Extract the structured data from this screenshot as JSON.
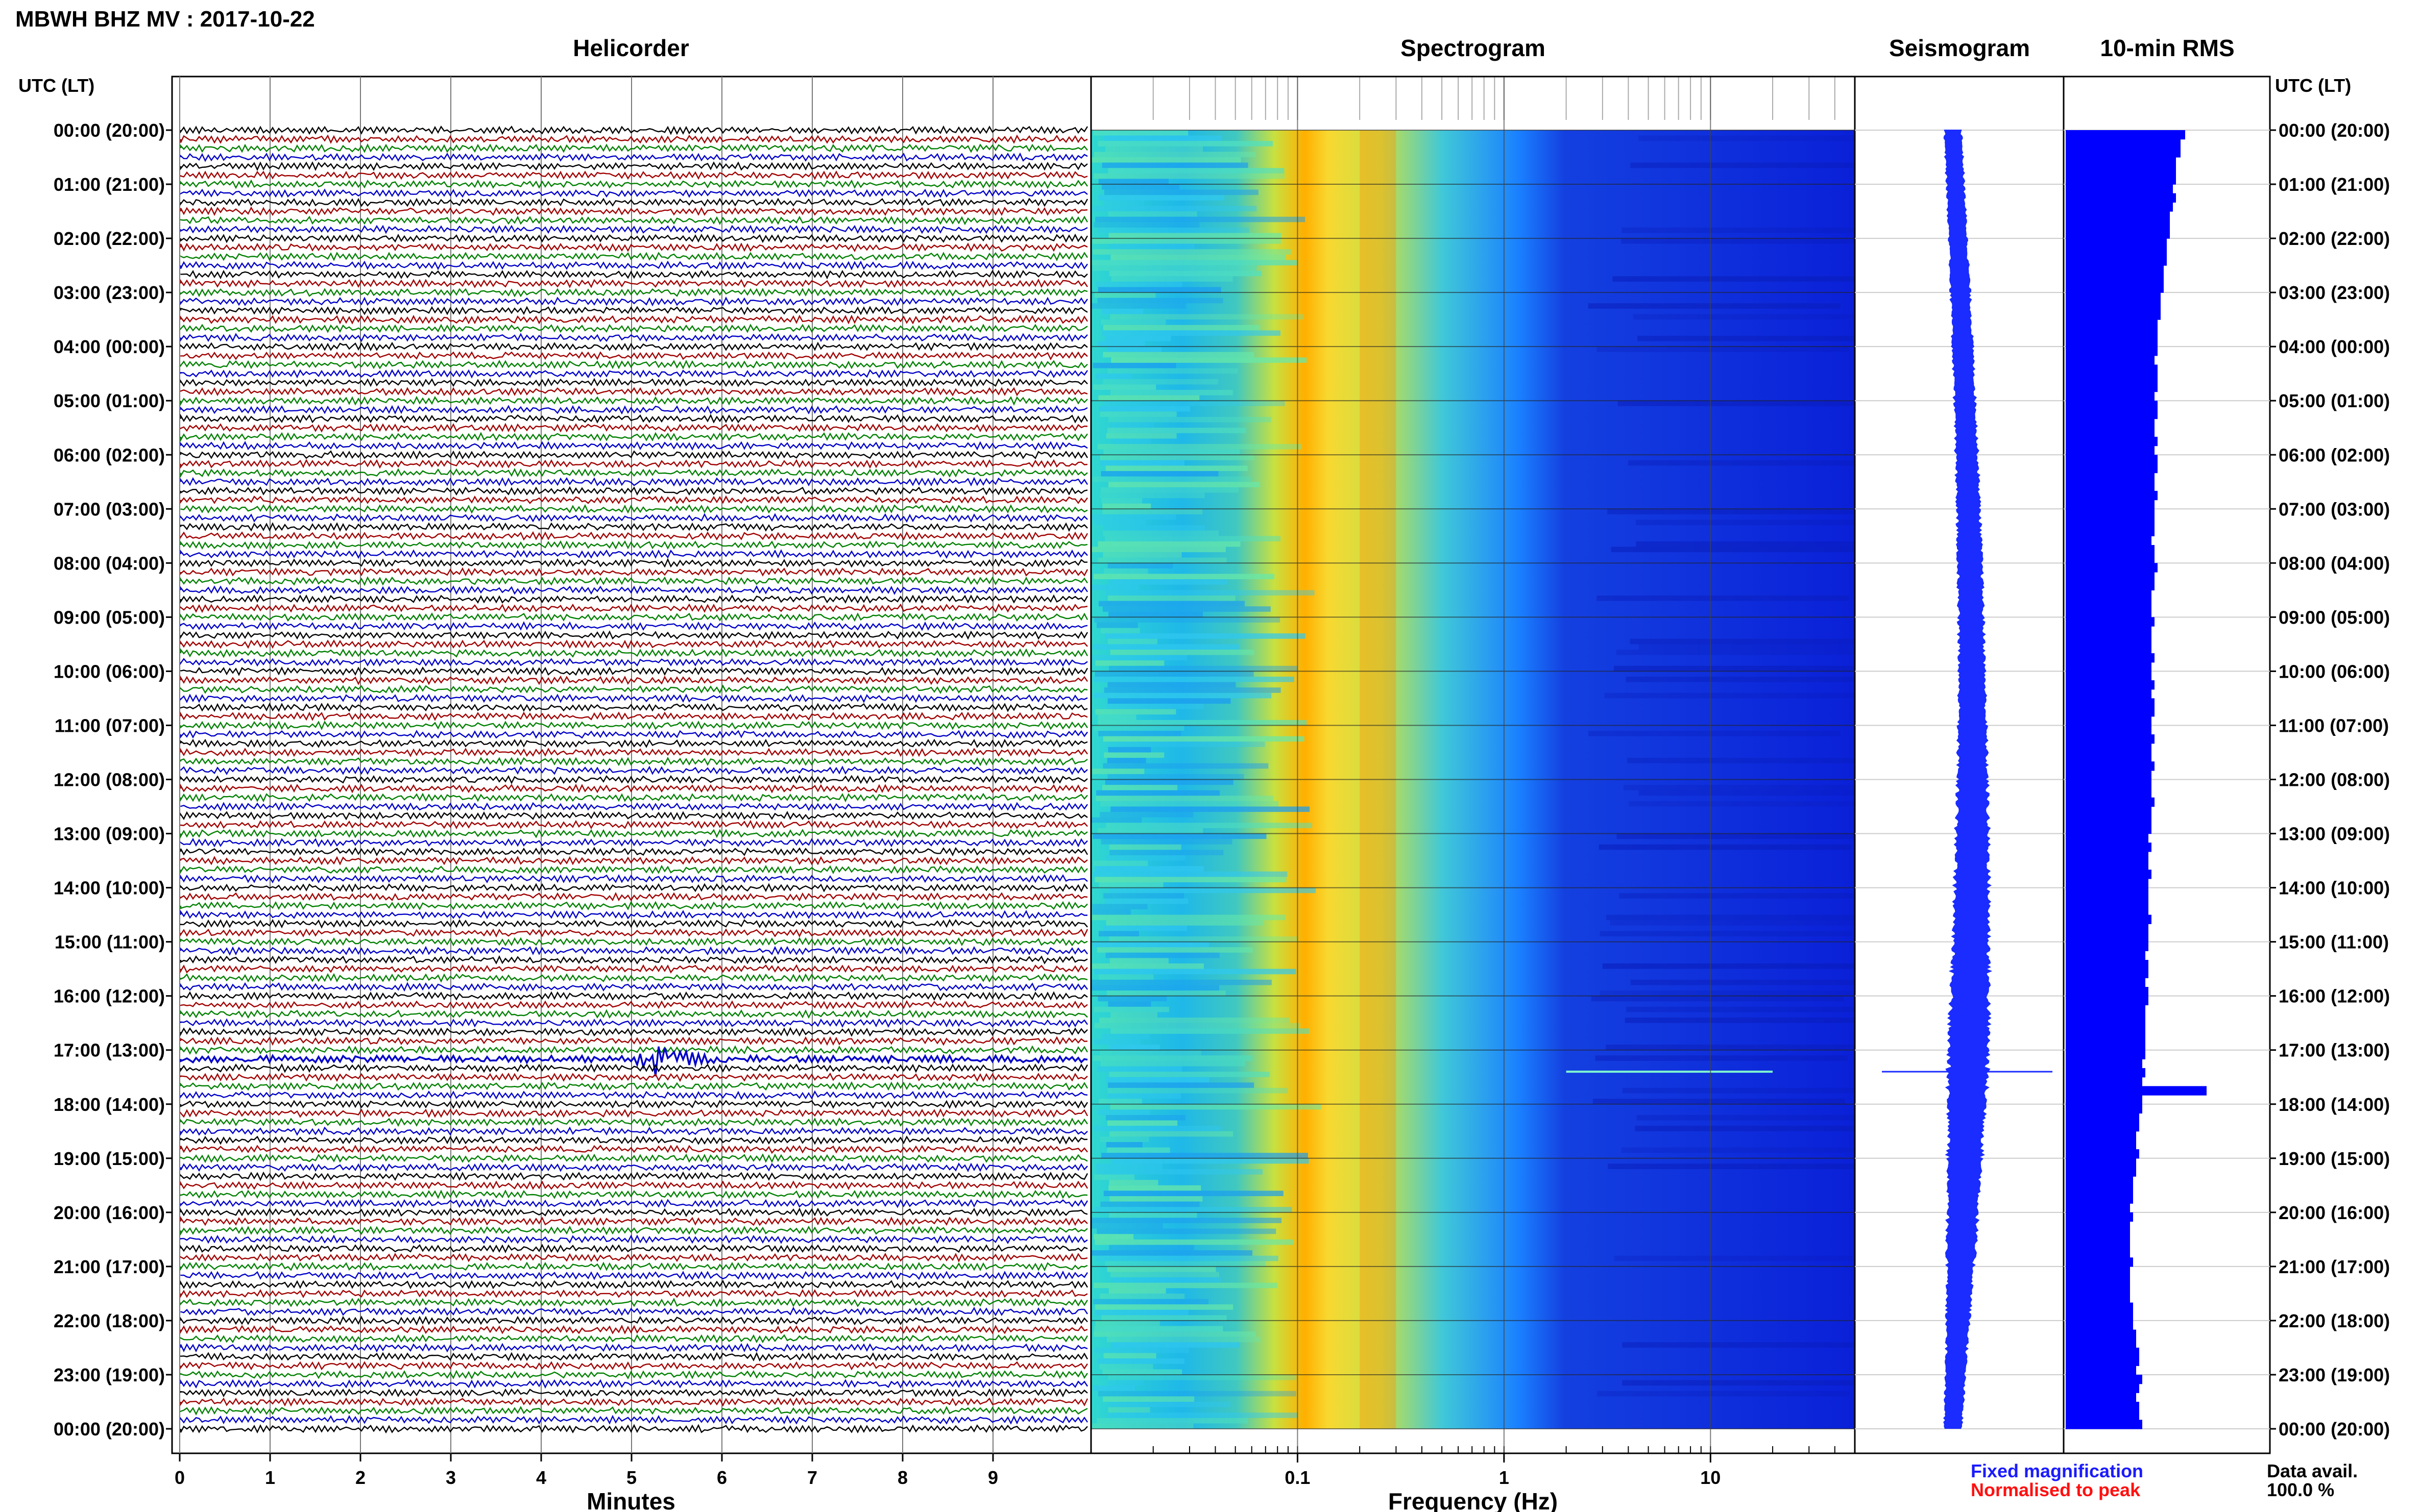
{
  "header": {
    "station_title": "MBWH BHZ MV : 2017-10-22"
  },
  "panels": {
    "helicorder": "Helicorder",
    "spectrogram": "Spectrogram",
    "seismogram": "Seismogram",
    "rms": "10-min RMS"
  },
  "axis_labels": {
    "left_time": "UTC (LT)",
    "right_time": "UTC (LT)",
    "minutes": "Minutes",
    "frequency": "Frequency (Hz)"
  },
  "legend": {
    "fixed": "Fixed magnification",
    "fixed_color": "#1b1bff",
    "normalised": "Normalised to peak",
    "normalised_color": "#ff1010",
    "data_avail_label": "Data avail.",
    "data_avail_value": "100.0 %"
  },
  "colors": {
    "trace_cycle": [
      "#000000",
      "#a00000",
      "#008000",
      "#0000c8"
    ],
    "rms_bar": "#0000ff",
    "seismo": "#1a2cff",
    "spectro_low": "#0b2bd8",
    "spectro_high": "#ff6a00"
  },
  "chart_data": [
    {
      "type": "line",
      "name": "helicorder",
      "title": "Helicorder",
      "xlabel": "Minutes",
      "x_ticks": [
        "0",
        "1",
        "2",
        "3",
        "4",
        "5",
        "6",
        "7",
        "8",
        "9"
      ],
      "xlim": [
        0,
        10
      ],
      "y_ticks": [
        "00:00 (20:00)",
        "01:00 (21:00)",
        "02:00 (22:00)",
        "03:00 (23:00)",
        "04:00 (00:00)",
        "05:00 (01:00)",
        "06:00 (02:00)",
        "07:00 (03:00)",
        "08:00 (04:00)",
        "09:00 (05:00)",
        "10:00 (06:00)",
        "11:00 (07:00)",
        "12:00 (08:00)",
        "13:00 (09:00)",
        "14:00 (10:00)",
        "15:00 (11:00)",
        "16:00 (12:00)",
        "17:00 (13:00)",
        "18:00 (14:00)",
        "19:00 (15:00)",
        "20:00 (16:00)",
        "21:00 (17:00)",
        "22:00 (18:00)",
        "23:00 (19:00)",
        "00:00 (20:00)"
      ],
      "traces_per_hour": 6,
      "event": {
        "hour": 17,
        "minute": 5.2,
        "trace_index": 1
      }
    },
    {
      "type": "heatmap",
      "name": "spectrogram",
      "title": "Spectrogram",
      "xlabel": "Frequency (Hz)",
      "x_scale": "log",
      "xlim": [
        0.01,
        50
      ],
      "x_ticks": [
        "0.1",
        "1",
        "10"
      ],
      "peak_band_hz": [
        0.2,
        0.3
      ],
      "event_line": {
        "hour": 17.4,
        "freq_hz": [
          2,
          20
        ]
      }
    },
    {
      "type": "line",
      "name": "seismogram",
      "title": "Seismogram",
      "envelope_by_hour": [
        0.9,
        0.9,
        0.95,
        1.0,
        1.05,
        1.1,
        1.15,
        1.2,
        1.25,
        1.3,
        1.35,
        1.45,
        1.55,
        1.7,
        1.8,
        1.9,
        2.0,
        2.1,
        2.0,
        1.8,
        1.6,
        1.4,
        1.2,
        1.0,
        0.9
      ],
      "event_hour": 17.4
    },
    {
      "type": "bar",
      "name": "rms",
      "title": "10-min RMS",
      "values": [
        0.78,
        0.75,
        0.75,
        0.72,
        0.72,
        0.72,
        0.7,
        0.72,
        0.7,
        0.68,
        0.68,
        0.68,
        0.66,
        0.66,
        0.66,
        0.64,
        0.64,
        0.64,
        0.62,
        0.62,
        0.62,
        0.6,
        0.6,
        0.6,
        0.6,
        0.58,
        0.6,
        0.6,
        0.6,
        0.58,
        0.6,
        0.6,
        0.58,
        0.58,
        0.6,
        0.58,
        0.6,
        0.6,
        0.58,
        0.58,
        0.6,
        0.58,
        0.58,
        0.58,
        0.58,
        0.56,
        0.58,
        0.58,
        0.6,
        0.58,
        0.58,
        0.56,
        0.56,
        0.56,
        0.58,
        0.56,
        0.56,
        0.56,
        0.58,
        0.56,
        0.56,
        0.58,
        0.56,
        0.58,
        0.58,
        0.56,
        0.56,
        0.58,
        0.56,
        0.56,
        0.58,
        0.56,
        0.56,
        0.56,
        0.58,
        0.56,
        0.56,
        0.56,
        0.54,
        0.56,
        0.54,
        0.54,
        0.56,
        0.54,
        0.54,
        0.54,
        0.54,
        0.56,
        0.54,
        0.54,
        0.54,
        0.52,
        0.54,
        0.54,
        0.52,
        0.54,
        0.54,
        0.52,
        0.52,
        0.52,
        0.52,
        0.52,
        0.52,
        0.5,
        0.52,
        0.5,
        0.92,
        0.5,
        0.5,
        0.48,
        0.48,
        0.46,
        0.46,
        0.48,
        0.46,
        0.46,
        0.44,
        0.44,
        0.44,
        0.42,
        0.44,
        0.42,
        0.42,
        0.42,
        0.42,
        0.44,
        0.42,
        0.42,
        0.42,
        0.42,
        0.44,
        0.44,
        0.44,
        0.46,
        0.46,
        0.48,
        0.48,
        0.46,
        0.5,
        0.48,
        0.46,
        0.48,
        0.48,
        0.5
      ],
      "xlim": [
        0,
        1
      ]
    }
  ]
}
